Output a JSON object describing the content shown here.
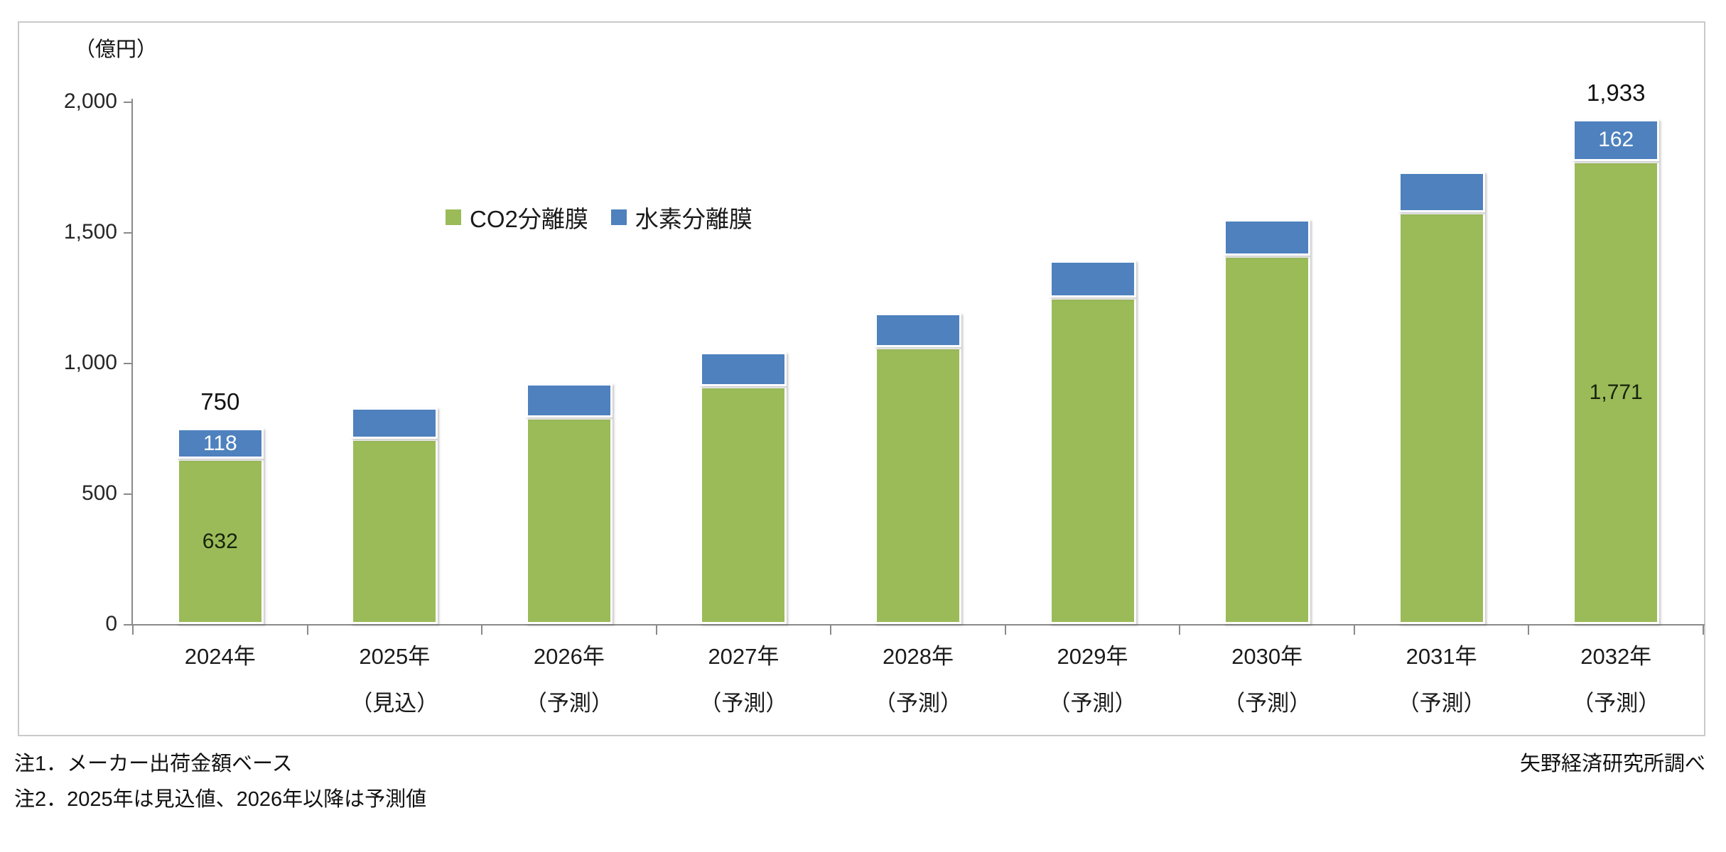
{
  "figure": {
    "unit_label": "（億円）",
    "notes": [
      "注1．メーカー出荷金額ベース",
      "注2．2025年は見込値、2026年以降は予測値"
    ],
    "source": "矢野経済研究所調べ"
  },
  "chart_data": {
    "type": "bar",
    "stacked": true,
    "orientation": "vertical",
    "ylabel": "（億円）",
    "ylim": [
      0,
      2000
    ],
    "ytick_interval": 500,
    "yticks": [
      "0",
      "500",
      "1,000",
      "1,500",
      "2,000"
    ],
    "grid": false,
    "legend_position": "inside-upper-left",
    "categories": [
      {
        "line1": "2024年",
        "line2": ""
      },
      {
        "line1": "2025年",
        "line2": "（見込）"
      },
      {
        "line1": "2026年",
        "line2": "（予測）"
      },
      {
        "line1": "2027年",
        "line2": "（予測）"
      },
      {
        "line1": "2028年",
        "line2": "（予測）"
      },
      {
        "line1": "2029年",
        "line2": "（予測）"
      },
      {
        "line1": "2030年",
        "line2": "（予測）"
      },
      {
        "line1": "2031年",
        "line2": "（予測）"
      },
      {
        "line1": "2032年",
        "line2": "（予測）"
      }
    ],
    "series": [
      {
        "name": "CO2分離膜",
        "color": "#9BBB59",
        "values": [
          632,
          710,
          790,
          910,
          1060,
          1250,
          1410,
          1575,
          1771
        ],
        "labels": [
          "632",
          null,
          null,
          null,
          null,
          null,
          null,
          null,
          "1,771"
        ],
        "label_color": "#17220b"
      },
      {
        "name": "水素分離膜",
        "color": "#4E81BD",
        "values": [
          118,
          120,
          130,
          130,
          130,
          140,
          140,
          155,
          162
        ],
        "labels": [
          "118",
          null,
          null,
          null,
          null,
          null,
          null,
          null,
          "162"
        ],
        "label_color": "#ffffff"
      }
    ],
    "totals": [
      750,
      830,
      920,
      1040,
      1190,
      1390,
      1550,
      1730,
      1933
    ],
    "total_labels": [
      "750",
      null,
      null,
      null,
      null,
      null,
      null,
      null,
      "1,933"
    ]
  }
}
